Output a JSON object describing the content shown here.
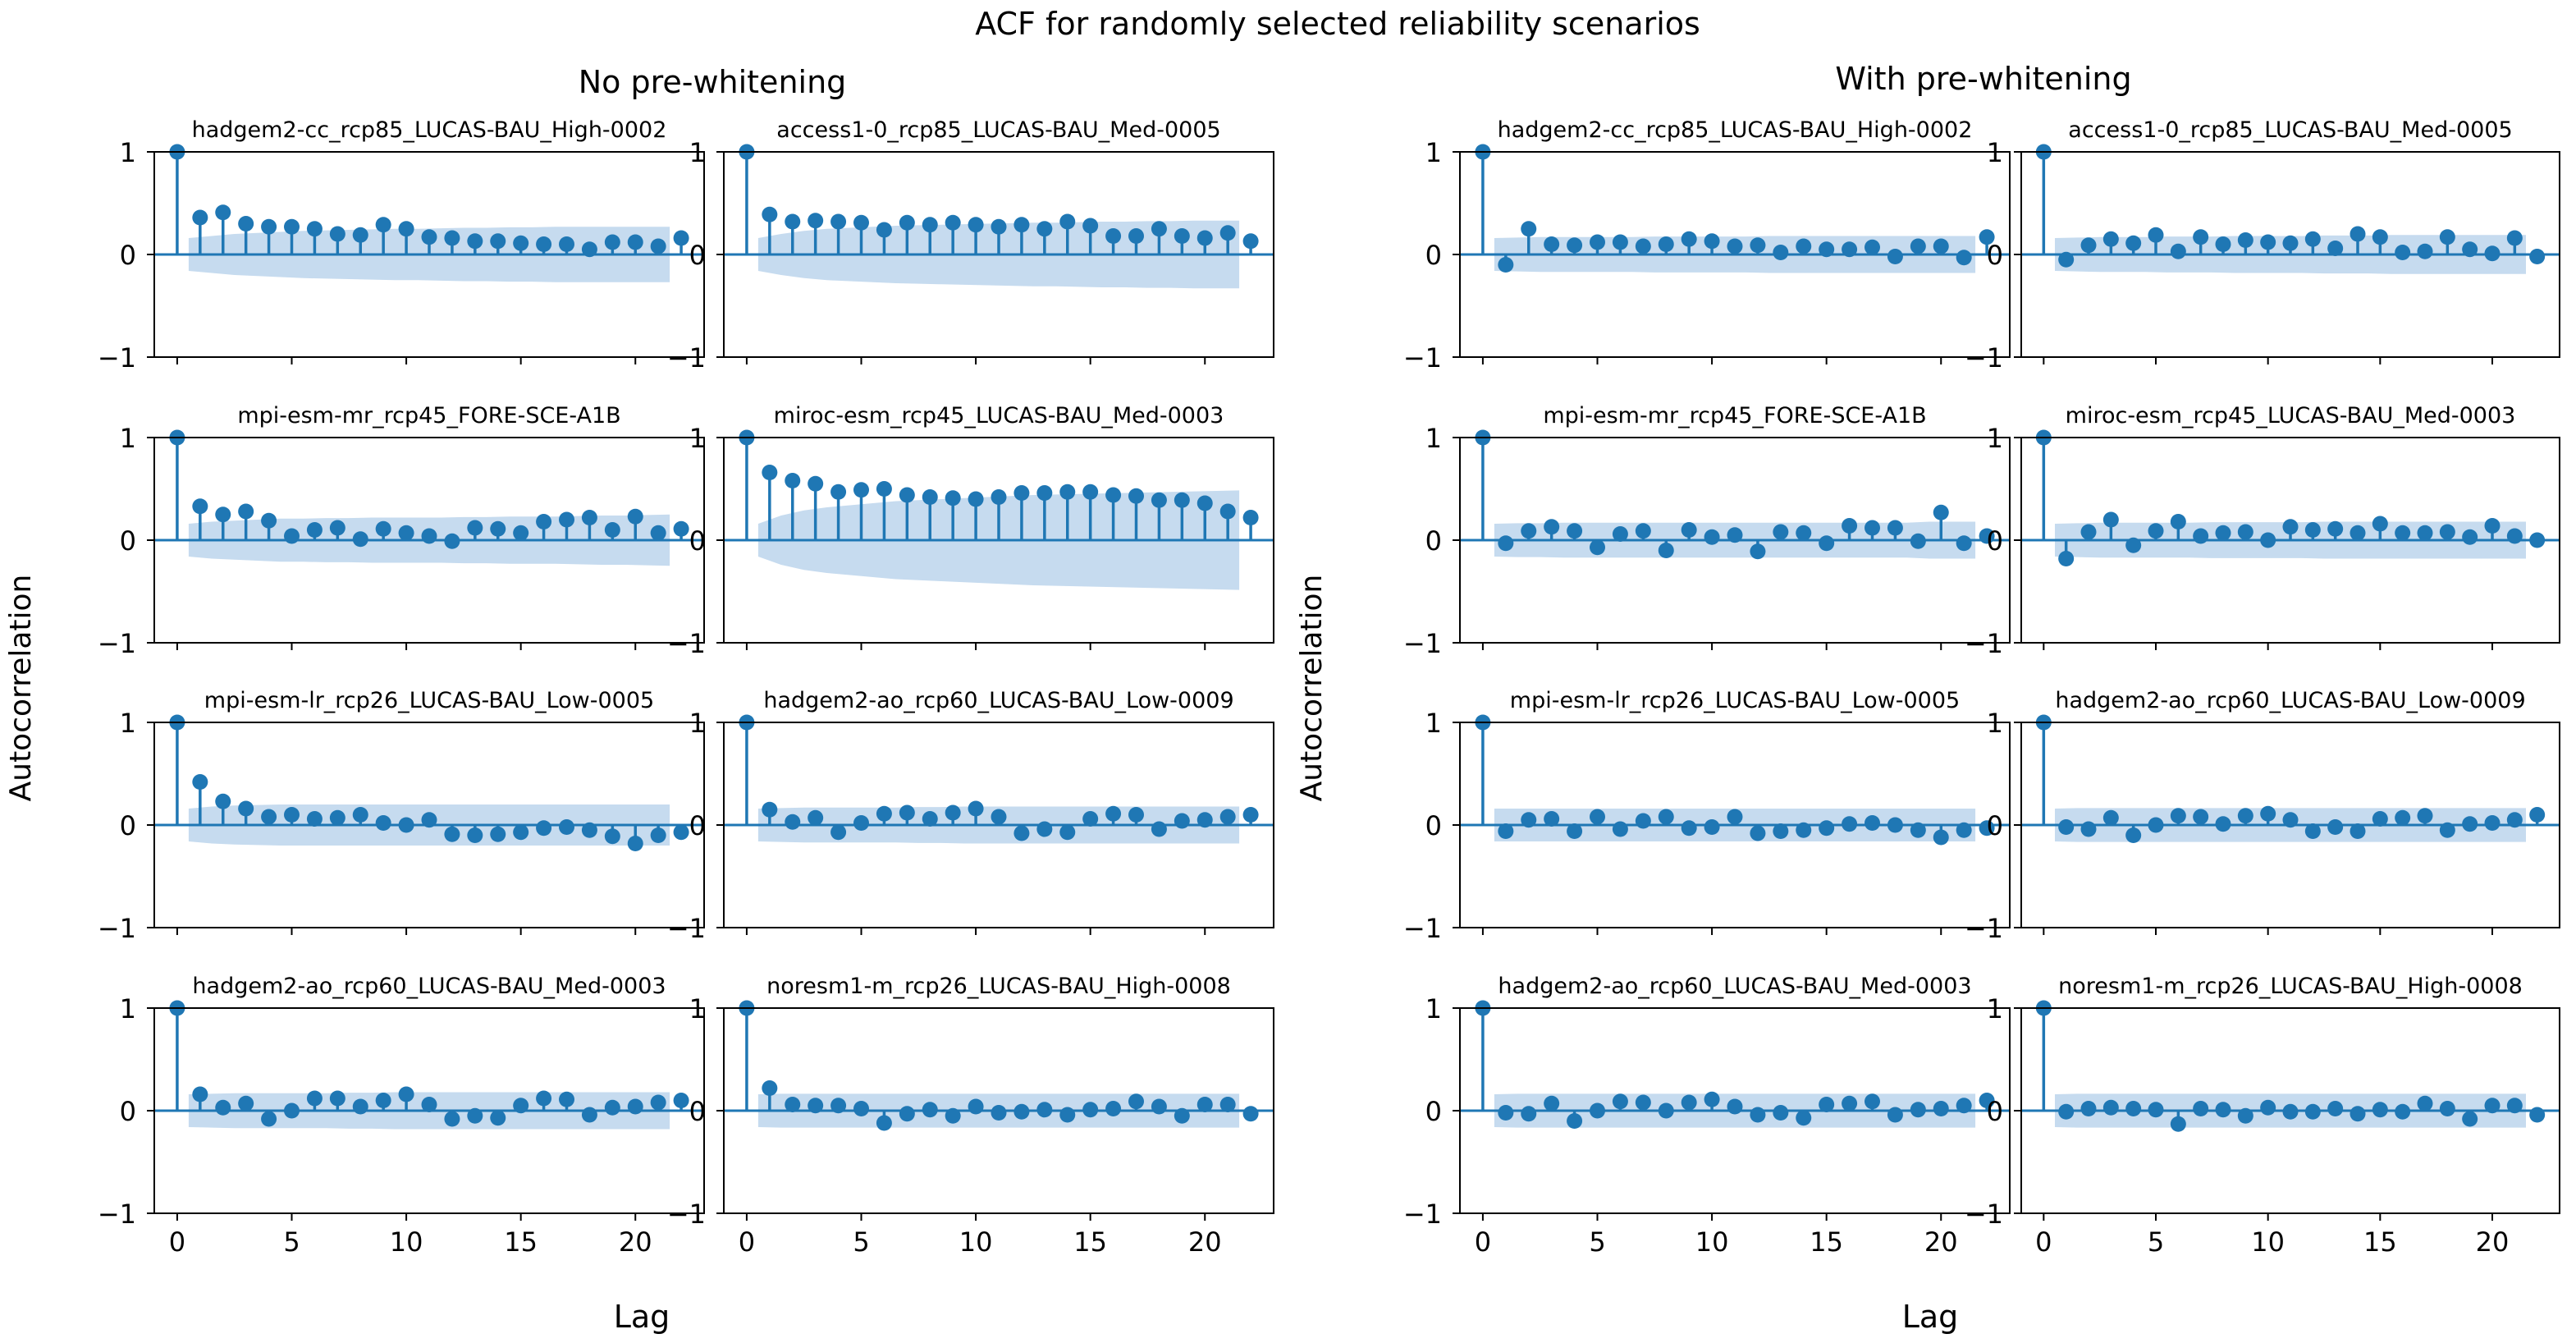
{
  "figure": {
    "title": "ACF for randomly selected reliability scenarios",
    "panels": [
      {
        "title": "No pre-whitening",
        "ylabel": "Autocorrelation",
        "xlabel": "Lag"
      },
      {
        "title": "With pre-whitening",
        "ylabel": "Autocorrelation",
        "xlabel": "Lag"
      }
    ]
  },
  "chart_data": {
    "type": "acf-stem",
    "xlim": [
      -1,
      23
    ],
    "ylim": [
      -1,
      1
    ],
    "xticks": [
      0,
      5,
      10,
      15,
      20
    ],
    "yticks": [
      -1,
      0,
      1
    ],
    "color": "#1f77b4",
    "band_color": "#c6dbef",
    "charts": [
      {
        "panel": 0,
        "row": 0,
        "col": 0,
        "title": "hadgem2-cc_rcp85_LUCAS-BAU_High-0002",
        "values": [
          1,
          0.36,
          0.41,
          0.3,
          0.27,
          0.27,
          0.25,
          0.2,
          0.19,
          0.29,
          0.25,
          0.17,
          0.16,
          0.13,
          0.13,
          0.11,
          0.1,
          0.1,
          0.05,
          0.12,
          0.12,
          0.08,
          0.16
        ],
        "conf": [
          0.16,
          0.18,
          0.2,
          0.21,
          0.22,
          0.23,
          0.235,
          0.24,
          0.245,
          0.25,
          0.25,
          0.255,
          0.26,
          0.26,
          0.265,
          0.265,
          0.27,
          0.27,
          0.27,
          0.27,
          0.27,
          0.27
        ]
      },
      {
        "panel": 0,
        "row": 0,
        "col": 1,
        "title": "access1-0_rcp85_LUCAS-BAU_Med-0005",
        "values": [
          1,
          0.39,
          0.32,
          0.33,
          0.32,
          0.31,
          0.24,
          0.31,
          0.29,
          0.31,
          0.29,
          0.27,
          0.29,
          0.25,
          0.32,
          0.28,
          0.18,
          0.18,
          0.25,
          0.18,
          0.16,
          0.21,
          0.13
        ],
        "conf": [
          0.16,
          0.2,
          0.23,
          0.25,
          0.26,
          0.27,
          0.28,
          0.285,
          0.29,
          0.295,
          0.3,
          0.305,
          0.31,
          0.31,
          0.315,
          0.32,
          0.32,
          0.325,
          0.325,
          0.33,
          0.33,
          0.33
        ]
      },
      {
        "panel": 0,
        "row": 1,
        "col": 0,
        "title": "mpi-esm-mr_rcp45_FORE-SCE-A1B",
        "values": [
          1,
          0.33,
          0.25,
          0.28,
          0.19,
          0.04,
          0.1,
          0.12,
          0.01,
          0.11,
          0.07,
          0.04,
          -0.01,
          0.12,
          0.11,
          0.07,
          0.18,
          0.2,
          0.22,
          0.1,
          0.23,
          0.07,
          0.11
        ],
        "conf": [
          0.16,
          0.18,
          0.19,
          0.2,
          0.21,
          0.21,
          0.215,
          0.215,
          0.22,
          0.22,
          0.22,
          0.22,
          0.225,
          0.225,
          0.23,
          0.23,
          0.23,
          0.235,
          0.24,
          0.24,
          0.245,
          0.25
        ]
      },
      {
        "panel": 0,
        "row": 1,
        "col": 1,
        "title": "miroc-esm_rcp45_LUCAS-BAU_Med-0003",
        "values": [
          1,
          0.66,
          0.58,
          0.55,
          0.47,
          0.49,
          0.5,
          0.44,
          0.42,
          0.41,
          0.4,
          0.42,
          0.46,
          0.46,
          0.47,
          0.47,
          0.44,
          0.43,
          0.39,
          0.39,
          0.36,
          0.28,
          0.22
        ],
        "conf": [
          0.16,
          0.24,
          0.29,
          0.32,
          0.34,
          0.36,
          0.38,
          0.39,
          0.4,
          0.41,
          0.42,
          0.43,
          0.44,
          0.445,
          0.45,
          0.455,
          0.46,
          0.465,
          0.47,
          0.475,
          0.48,
          0.485
        ]
      },
      {
        "panel": 0,
        "row": 2,
        "col": 0,
        "title": "mpi-esm-lr_rcp26_LUCAS-BAU_Low-0005",
        "values": [
          1,
          0.42,
          0.23,
          0.16,
          0.08,
          0.1,
          0.06,
          0.07,
          0.1,
          0.02,
          0.0,
          0.05,
          -0.09,
          -0.1,
          -0.09,
          -0.07,
          -0.03,
          -0.02,
          -0.05,
          -0.11,
          -0.18,
          -0.1,
          -0.07
        ],
        "conf": [
          0.16,
          0.18,
          0.19,
          0.195,
          0.2,
          0.2,
          0.2,
          0.2,
          0.2,
          0.2,
          0.2,
          0.2,
          0.2,
          0.2,
          0.2,
          0.2,
          0.2,
          0.2,
          0.2,
          0.2,
          0.2,
          0.2
        ]
      },
      {
        "panel": 0,
        "row": 2,
        "col": 1,
        "title": "hadgem2-ao_rcp60_LUCAS-BAU_Low-0009",
        "values": [
          1,
          0.15,
          0.03,
          0.07,
          -0.07,
          0.02,
          0.11,
          0.12,
          0.06,
          0.12,
          0.16,
          0.08,
          -0.08,
          -0.04,
          -0.07,
          0.06,
          0.11,
          0.1,
          -0.04,
          0.04,
          0.05,
          0.08,
          0.1
        ],
        "conf": [
          0.16,
          0.165,
          0.17,
          0.17,
          0.17,
          0.17,
          0.17,
          0.175,
          0.175,
          0.18,
          0.18,
          0.18,
          0.18,
          0.18,
          0.18,
          0.18,
          0.18,
          0.18,
          0.18,
          0.18,
          0.18,
          0.18
        ]
      },
      {
        "panel": 0,
        "row": 3,
        "col": 0,
        "title": "hadgem2-ao_rcp60_LUCAS-BAU_Med-0003",
        "values": [
          1,
          0.16,
          0.03,
          0.07,
          -0.08,
          0.0,
          0.12,
          0.12,
          0.04,
          0.1,
          0.16,
          0.06,
          -0.08,
          -0.05,
          -0.07,
          0.05,
          0.12,
          0.11,
          -0.04,
          0.03,
          0.04,
          0.08,
          0.1
        ],
        "conf": [
          0.16,
          0.165,
          0.17,
          0.17,
          0.17,
          0.17,
          0.17,
          0.175,
          0.175,
          0.18,
          0.18,
          0.18,
          0.18,
          0.18,
          0.18,
          0.18,
          0.18,
          0.18,
          0.18,
          0.18,
          0.18,
          0.18
        ]
      },
      {
        "panel": 0,
        "row": 3,
        "col": 1,
        "title": "noresm1-m_rcp26_LUCAS-BAU_High-0008",
        "values": [
          1,
          0.22,
          0.06,
          0.05,
          0.05,
          0.02,
          -0.12,
          -0.03,
          0.01,
          -0.05,
          0.04,
          -0.02,
          -0.01,
          0.01,
          -0.04,
          0.01,
          0.02,
          0.09,
          0.04,
          -0.05,
          0.06,
          0.06,
          -0.03
        ],
        "conf": [
          0.16,
          0.165,
          0.165,
          0.165,
          0.165,
          0.165,
          0.165,
          0.165,
          0.165,
          0.165,
          0.165,
          0.165,
          0.165,
          0.165,
          0.165,
          0.165,
          0.165,
          0.165,
          0.165,
          0.165,
          0.165,
          0.165
        ]
      },
      {
        "panel": 1,
        "row": 0,
        "col": 0,
        "title": "hadgem2-cc_rcp85_LUCAS-BAU_High-0002",
        "values": [
          1,
          -0.1,
          0.25,
          0.1,
          0.09,
          0.12,
          0.12,
          0.08,
          0.1,
          0.15,
          0.13,
          0.08,
          0.09,
          0.02,
          0.08,
          0.05,
          0.05,
          0.07,
          -0.02,
          0.08,
          0.08,
          -0.03,
          0.17
        ],
        "conf": [
          0.16,
          0.165,
          0.17,
          0.17,
          0.17,
          0.17,
          0.17,
          0.175,
          0.175,
          0.175,
          0.175,
          0.175,
          0.18,
          0.18,
          0.18,
          0.18,
          0.18,
          0.18,
          0.18,
          0.18,
          0.18,
          0.18
        ]
      },
      {
        "panel": 1,
        "row": 0,
        "col": 1,
        "title": "access1-0_rcp85_LUCAS-BAU_Med-0005",
        "values": [
          1,
          -0.05,
          0.09,
          0.15,
          0.11,
          0.19,
          0.03,
          0.17,
          0.1,
          0.14,
          0.12,
          0.11,
          0.15,
          0.06,
          0.2,
          0.17,
          0.02,
          0.03,
          0.17,
          0.05,
          0.01,
          0.16,
          -0.02
        ],
        "conf": [
          0.16,
          0.165,
          0.17,
          0.17,
          0.17,
          0.175,
          0.175,
          0.175,
          0.18,
          0.18,
          0.18,
          0.18,
          0.185,
          0.185,
          0.185,
          0.19,
          0.19,
          0.19,
          0.19,
          0.19,
          0.19,
          0.19
        ]
      },
      {
        "panel": 1,
        "row": 1,
        "col": 0,
        "title": "mpi-esm-mr_rcp45_FORE-SCE-A1B",
        "values": [
          1,
          -0.03,
          0.09,
          0.13,
          0.09,
          -0.07,
          0.06,
          0.09,
          -0.1,
          0.1,
          0.03,
          0.05,
          -0.11,
          0.08,
          0.07,
          -0.03,
          0.14,
          0.12,
          0.12,
          -0.01,
          0.27,
          -0.03,
          0.04
        ],
        "conf": [
          0.16,
          0.165,
          0.165,
          0.17,
          0.17,
          0.17,
          0.17,
          0.17,
          0.17,
          0.17,
          0.17,
          0.17,
          0.17,
          0.17,
          0.17,
          0.17,
          0.17,
          0.17,
          0.17,
          0.18,
          0.18,
          0.18
        ]
      },
      {
        "panel": 1,
        "row": 1,
        "col": 1,
        "title": "miroc-esm_rcp45_LUCAS-BAU_Med-0003",
        "values": [
          1,
          -0.18,
          0.08,
          0.2,
          -0.05,
          0.09,
          0.18,
          0.04,
          0.07,
          0.08,
          0.0,
          0.13,
          0.1,
          0.11,
          0.07,
          0.16,
          0.07,
          0.07,
          0.08,
          0.03,
          0.14,
          0.04,
          0.0
        ],
        "conf": [
          0.16,
          0.165,
          0.17,
          0.17,
          0.17,
          0.17,
          0.17,
          0.175,
          0.175,
          0.175,
          0.175,
          0.175,
          0.18,
          0.18,
          0.18,
          0.18,
          0.18,
          0.18,
          0.18,
          0.18,
          0.18,
          0.18
        ]
      },
      {
        "panel": 1,
        "row": 2,
        "col": 0,
        "title": "mpi-esm-lr_rcp26_LUCAS-BAU_Low-0005",
        "values": [
          1,
          -0.06,
          0.05,
          0.06,
          -0.06,
          0.08,
          -0.04,
          0.04,
          0.08,
          -0.03,
          -0.02,
          0.08,
          -0.08,
          -0.06,
          -0.05,
          -0.03,
          0.01,
          0.02,
          0.0,
          -0.05,
          -0.12,
          -0.05,
          -0.03
        ],
        "conf": [
          0.16,
          0.16,
          0.16,
          0.16,
          0.16,
          0.16,
          0.16,
          0.16,
          0.16,
          0.16,
          0.16,
          0.16,
          0.16,
          0.16,
          0.16,
          0.16,
          0.16,
          0.16,
          0.16,
          0.16,
          0.16,
          0.16
        ]
      },
      {
        "panel": 1,
        "row": 2,
        "col": 1,
        "title": "hadgem2-ao_rcp60_LUCAS-BAU_Low-0009",
        "values": [
          1,
          -0.02,
          -0.04,
          0.07,
          -0.1,
          0.0,
          0.09,
          0.08,
          0.01,
          0.09,
          0.11,
          0.05,
          -0.06,
          -0.02,
          -0.06,
          0.06,
          0.07,
          0.09,
          -0.05,
          0.01,
          0.02,
          0.05,
          0.1
        ],
        "conf": [
          0.16,
          0.165,
          0.165,
          0.165,
          0.165,
          0.165,
          0.165,
          0.165,
          0.165,
          0.165,
          0.165,
          0.165,
          0.165,
          0.165,
          0.165,
          0.165,
          0.165,
          0.165,
          0.165,
          0.165,
          0.165,
          0.165
        ]
      },
      {
        "panel": 1,
        "row": 3,
        "col": 0,
        "title": "hadgem2-ao_rcp60_LUCAS-BAU_Med-0003",
        "values": [
          1,
          -0.02,
          -0.03,
          0.07,
          -0.1,
          0.0,
          0.09,
          0.08,
          0.0,
          0.08,
          0.11,
          0.04,
          -0.04,
          -0.02,
          -0.07,
          0.06,
          0.07,
          0.09,
          -0.04,
          0.01,
          0.02,
          0.05,
          0.1
        ],
        "conf": [
          0.16,
          0.165,
          0.165,
          0.165,
          0.165,
          0.165,
          0.165,
          0.165,
          0.165,
          0.165,
          0.165,
          0.165,
          0.165,
          0.165,
          0.165,
          0.165,
          0.165,
          0.165,
          0.165,
          0.165,
          0.165,
          0.165
        ]
      },
      {
        "panel": 1,
        "row": 3,
        "col": 1,
        "title": "noresm1-m_rcp26_LUCAS-BAU_High-0008",
        "values": [
          1,
          -0.01,
          0.02,
          0.03,
          0.02,
          0.01,
          -0.13,
          0.02,
          0.01,
          -0.05,
          0.03,
          -0.01,
          -0.01,
          0.02,
          -0.03,
          0.01,
          -0.01,
          0.07,
          0.02,
          -0.08,
          0.05,
          0.05,
          -0.04
        ],
        "conf": [
          0.16,
          0.165,
          0.165,
          0.165,
          0.165,
          0.165,
          0.165,
          0.165,
          0.165,
          0.165,
          0.165,
          0.165,
          0.165,
          0.165,
          0.165,
          0.165,
          0.165,
          0.165,
          0.165,
          0.165,
          0.165,
          0.165
        ]
      }
    ]
  }
}
